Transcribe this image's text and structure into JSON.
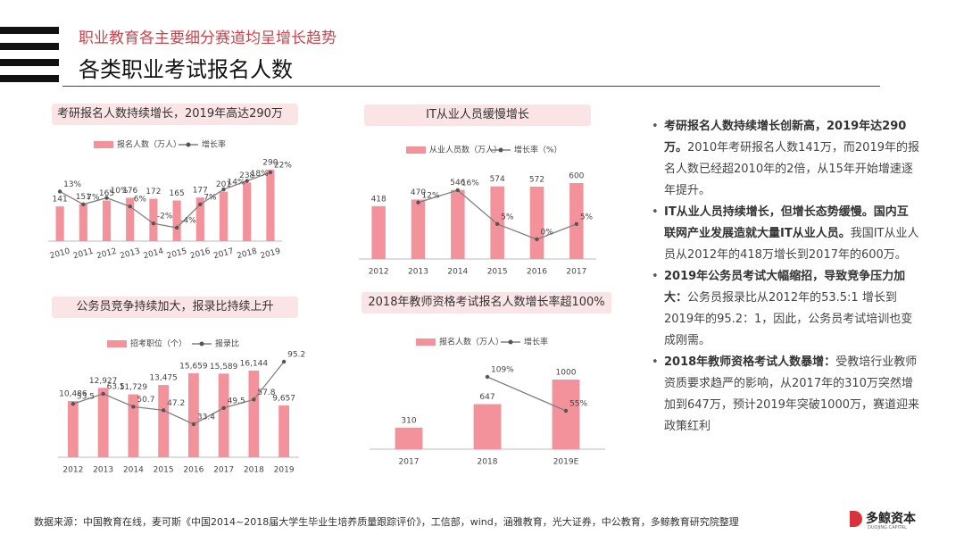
{
  "header": {
    "subtitle": "职业教育各主要细分赛道均呈增长趋势",
    "title": "各类职业考试报名人数"
  },
  "chart_data": [
    {
      "type": "combo",
      "title": "考研报名人数持续增长，2019年高达290万",
      "categories": [
        "2010",
        "2011",
        "2012",
        "2013",
        "2014",
        "2015",
        "2016",
        "2017",
        "2018",
        "2019"
      ],
      "series": [
        {
          "name": "报名人数（万人）",
          "color": "#f4929b",
          "values": [
            141,
            151,
            165,
            176,
            172,
            165,
            177,
            201,
            238,
            290
          ]
        },
        {
          "name": "增长率",
          "color": "#808080",
          "axis": "y2",
          "values": [
            13,
            7,
            10,
            6,
            -2,
            -4,
            7,
            14,
            18,
            22
          ],
          "value_labels": [
            "13%",
            "7%",
            "10%",
            "6%",
            "-2%",
            "-4%",
            "7%",
            "14%",
            "18%",
            "22%"
          ]
        }
      ]
    },
    {
      "type": "combo",
      "title": "IT从业人员缓慢增长",
      "categories": [
        "2012",
        "2013",
        "2014",
        "2015",
        "2016",
        "2017"
      ],
      "series": [
        {
          "name": "从业人员数（万人）",
          "color": "#f4929b",
          "values": [
            418,
            470,
            546,
            574,
            572,
            600
          ]
        },
        {
          "name": "增长率（%）",
          "color": "#808080",
          "axis": "y2",
          "values": [
            null,
            12,
            16,
            5,
            0,
            5
          ],
          "value_labels": [
            null,
            "12%",
            "16%",
            "5%",
            "0%",
            "5%"
          ]
        }
      ]
    },
    {
      "type": "combo",
      "title": "公务员竞争持续加大，报录比持续上升",
      "categories": [
        "2012",
        "2013",
        "2014",
        "2015",
        "2016",
        "2017",
        "2018",
        "2019"
      ],
      "series": [
        {
          "name": "招考职位（个）",
          "color": "#f4929b",
          "values": [
            10486,
            12927,
            11729,
            13475,
            15659,
            15589,
            16144,
            9657
          ],
          "value_labels": [
            "10,486",
            "12,927",
            "11,729",
            "13,475",
            "15,659",
            "15,589",
            "16,144",
            "9,657"
          ]
        },
        {
          "name": "报录比",
          "color": "#808080",
          "axis": "y2",
          "values": [
            53.5,
            63.5,
            50.7,
            47.2,
            33.4,
            49.5,
            57.8,
            95.2
          ]
        }
      ]
    },
    {
      "type": "combo",
      "title": "2018年教师资格考试报名人数增长率超100%",
      "categories": [
        "2017",
        "2018",
        "2019E"
      ],
      "series": [
        {
          "name": "报名人数（万人）",
          "color": "#f4929b",
          "values": [
            310,
            647,
            1000
          ]
        },
        {
          "name": "增长率",
          "color": "#808080",
          "axis": "y2",
          "values": [
            null,
            109,
            55
          ],
          "value_labels": [
            null,
            "109%",
            "55%"
          ]
        }
      ]
    }
  ],
  "bullets": [
    {
      "bold": "考研报名人数持续增长创新高，2019年达290万。",
      "text": "2010年考研报名人数141万，而2019年的报名人数已经超2010年的2倍，从15年开始增速逐年提升。"
    },
    {
      "bold": "IT从业人员持续增长，但增长态势缓慢。国内互联网产业发展造就大量IT从业人员。",
      "text": "我国IT从业人员从2012年的418万增长到2017年的600万。"
    },
    {
      "bold": "2019年公务员考试大幅缩招，导致竞争压力加大：",
      "text": "公务员报录比从2012年的53.5:1 增长到2019年的95.2：1，因此，公务员考试培训也变成刚需。"
    },
    {
      "bold": "2018年教师资格考试人数暴增：",
      "text": "受教培行业教师资质要求趋严的影响，从2017年的310万突然增加到647万，预计2019年突破1000万，赛道迎来政策红利"
    }
  ],
  "footer": {
    "source": "数据来源：中国教育在线，麦可斯《中国2014~2018届大学生毕业生培养质量跟踪评价》，工信部，wind，涵雅教育，光大证券，中公教育，多鲸教育研究院整理",
    "logo": "多鲸资本",
    "logo_en": "DUOJING CAPITAL"
  }
}
